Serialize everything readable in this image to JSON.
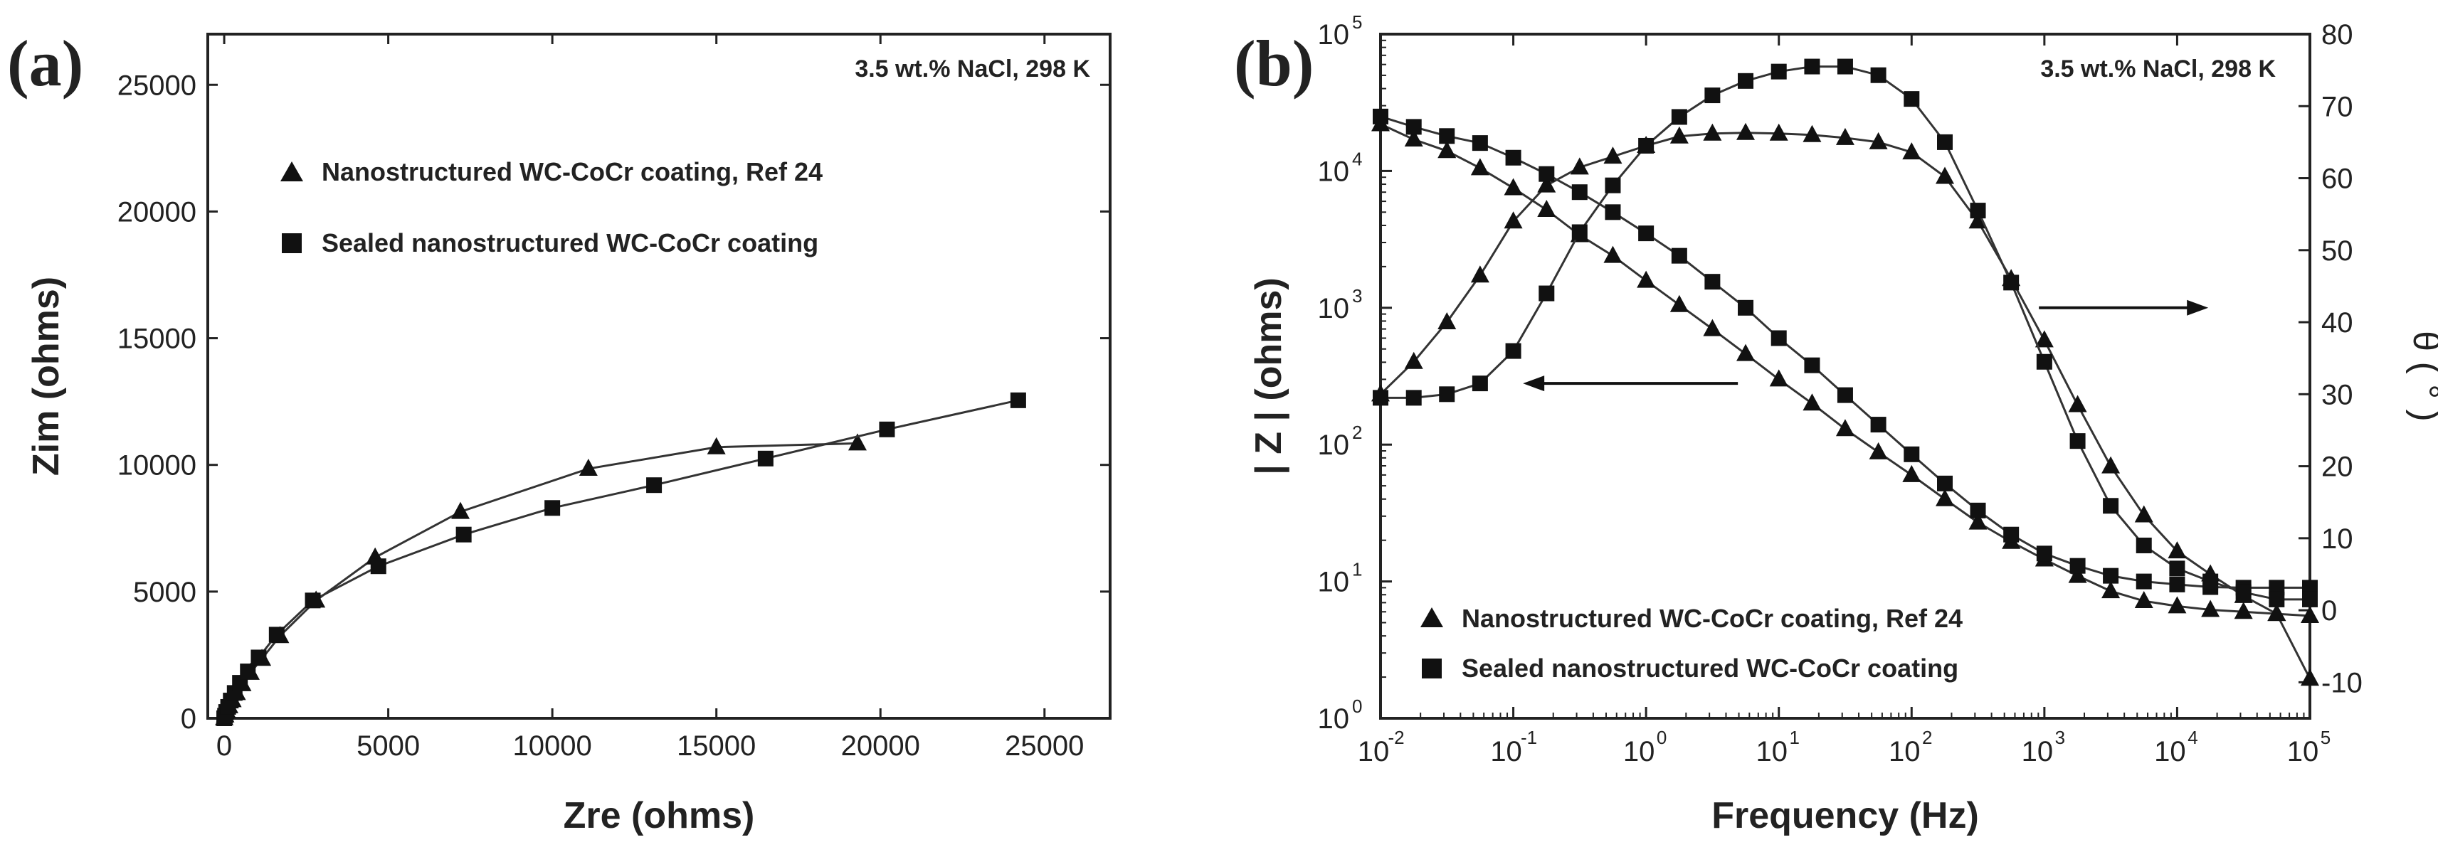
{
  "chart_data": [
    {
      "panel_label": "(a)",
      "type": "scatter",
      "title": "",
      "condition": "3.5 wt.% NaCl, 298 K",
      "xlabel": "Zre (ohms)",
      "ylabel": "Zim (ohms)",
      "xlim": [
        -500,
        27000
      ],
      "ylim": [
        0,
        27000
      ],
      "xticks": [
        0,
        5000,
        10000,
        15000,
        20000,
        25000
      ],
      "xtick_labels": [
        "0",
        "5000",
        "10000",
        "15000",
        "20000",
        "25000"
      ],
      "yticks": [
        0,
        5000,
        10000,
        15000,
        20000,
        25000
      ],
      "ytick_labels": [
        "0",
        "5000",
        "10000",
        "15000",
        "20000",
        "25000"
      ],
      "legend": [
        "Nanostructured WC-CoCr coating, Ref 24",
        "Sealed nanostructured WC-CoCr coating"
      ],
      "series": [
        {
          "name": "Nanostructured WC-CoCr coating, Ref 24",
          "marker": "triangle",
          "x": [
            0,
            30,
            80,
            150,
            250,
            380,
            550,
            800,
            1150,
            1700,
            2800,
            4600,
            7200,
            11100,
            15000,
            19300
          ],
          "y": [
            0,
            120,
            280,
            480,
            720,
            1000,
            1350,
            1800,
            2350,
            3250,
            4650,
            6350,
            8150,
            9850,
            10700,
            10850
          ]
        },
        {
          "name": "Sealed nanostructured WC-CoCr coating",
          "marker": "square",
          "x": [
            0,
            25,
            60,
            120,
            200,
            320,
            480,
            720,
            1050,
            1600,
            2700,
            4700,
            7300,
            10000,
            13100,
            16500,
            20200,
            24200
          ],
          "y": [
            0,
            100,
            250,
            450,
            700,
            1000,
            1400,
            1850,
            2400,
            3300,
            4650,
            6000,
            7250,
            8300,
            9200,
            10250,
            11400,
            12550
          ]
        }
      ]
    },
    {
      "panel_label": "(b)",
      "type": "line",
      "title": "",
      "condition": "3.5 wt.% NaCl, 298 K",
      "xlabel": "Frequency (Hz)",
      "ylabel": "| Z | (ohms)",
      "y2label": "θ ( ° )",
      "xscale": "log",
      "yscale": "log",
      "xlim": [
        0.01,
        100000
      ],
      "ylim": [
        1,
        100000
      ],
      "y2lim": [
        -15,
        80
      ],
      "xtick_base": "10",
      "xtick_exponents": [
        "-2",
        "-1",
        "0",
        "1",
        "2",
        "3",
        "4",
        "5"
      ],
      "ytick_base": "10",
      "ytick_exponents": [
        "0",
        "1",
        "2",
        "3",
        "4",
        "5"
      ],
      "y2ticks": [
        -10,
        0,
        10,
        20,
        30,
        40,
        50,
        60,
        70,
        80
      ],
      "y2tick_labels": [
        "-10",
        "0",
        "10",
        "20",
        "30",
        "40",
        "50",
        "60",
        "70",
        "80"
      ],
      "legend": [
        "Nanostructured WC-CoCr coating, Ref 24",
        "Sealed nanostructured WC-CoCr coating"
      ],
      "series": [
        {
          "name": "Nanostructured WC-CoCr coating, Ref 24",
          "quantity": "|Z|",
          "axis": "left",
          "marker": "triangle",
          "x": [
            0.01,
            0.0178,
            0.0316,
            0.0562,
            0.1,
            0.178,
            0.316,
            0.562,
            1,
            1.78,
            3.16,
            5.62,
            10,
            17.8,
            31.6,
            56.2,
            100,
            178,
            316,
            562,
            1000,
            1780,
            3160,
            5620,
            10000,
            17800,
            31600,
            56200,
            100000
          ],
          "y": [
            22000,
            17000,
            14000,
            10500,
            7500,
            5200,
            3400,
            2400,
            1580,
            1050,
            700,
            460,
            300,
            200,
            130,
            88,
            60,
            40,
            27,
            19.5,
            14.5,
            11,
            8.5,
            7.2,
            6.6,
            6.2,
            6,
            5.8,
            5.6
          ]
        },
        {
          "name": "Nanostructured WC-CoCr coating, Ref 24",
          "quantity": "theta",
          "axis": "right",
          "marker": "triangle",
          "x": [
            0.01,
            0.0178,
            0.0316,
            0.0562,
            0.1,
            0.178,
            0.316,
            0.562,
            1,
            1.78,
            3.16,
            5.62,
            10,
            17.8,
            31.6,
            56.2,
            100,
            178,
            316,
            562,
            1000,
            1780,
            3160,
            5620,
            10000,
            17800,
            31600,
            56200,
            100000
          ],
          "y": [
            30,
            34.5,
            40,
            46.5,
            54,
            59,
            61.5,
            63,
            64.5,
            65.8,
            66.2,
            66.3,
            66.2,
            66,
            65.6,
            65,
            63.6,
            60.2,
            54,
            46,
            37.5,
            28.5,
            20,
            13.2,
            8.2,
            5,
            2,
            -0.5,
            -9.5
          ]
        },
        {
          "name": "Sealed nanostructured WC-CoCr coating",
          "quantity": "|Z|",
          "axis": "left",
          "marker": "square",
          "x": [
            0.01,
            0.0178,
            0.0316,
            0.0562,
            0.1,
            0.178,
            0.316,
            0.562,
            1,
            1.78,
            3.16,
            5.62,
            10,
            17.8,
            31.6,
            56.2,
            100,
            178,
            316,
            562,
            1000,
            1780,
            3160,
            5620,
            10000,
            17800,
            31600,
            56200,
            100000
          ],
          "y": [
            25000,
            21000,
            18000,
            16000,
            12500,
            9500,
            7000,
            5000,
            3500,
            2400,
            1550,
            1000,
            600,
            380,
            230,
            140,
            85,
            52,
            33,
            22,
            16,
            13,
            11,
            10,
            9.5,
            9.1,
            9,
            9,
            9
          ]
        },
        {
          "name": "Sealed nanostructured WC-CoCr coating",
          "quantity": "theta",
          "axis": "right",
          "marker": "square",
          "x": [
            0.01,
            0.0178,
            0.0316,
            0.0562,
            0.1,
            0.178,
            0.316,
            0.562,
            1,
            1.78,
            3.16,
            5.62,
            10,
            17.8,
            31.6,
            56.2,
            100,
            178,
            316,
            562,
            1000,
            1780,
            3160,
            5620,
            10000,
            17800,
            31600,
            56200,
            100000
          ],
          "y": [
            29.5,
            29.5,
            30,
            31.5,
            36,
            44,
            52.5,
            59,
            64.5,
            68.5,
            71.5,
            73.5,
            74.8,
            75.5,
            75.5,
            74.3,
            71,
            65,
            55.5,
            45.5,
            34.5,
            23.5,
            14.5,
            9,
            5.8,
            4,
            2.5,
            1.5,
            1.5
          ]
        }
      ],
      "annotations": [
        {
          "text": "arrow-left",
          "points_to_axis": "left",
          "x_data": 3,
          "y_data": 280
        },
        {
          "text": "arrow-right",
          "points_to_axis": "right",
          "x_data": 4000,
          "y_data": 42
        }
      ]
    }
  ]
}
